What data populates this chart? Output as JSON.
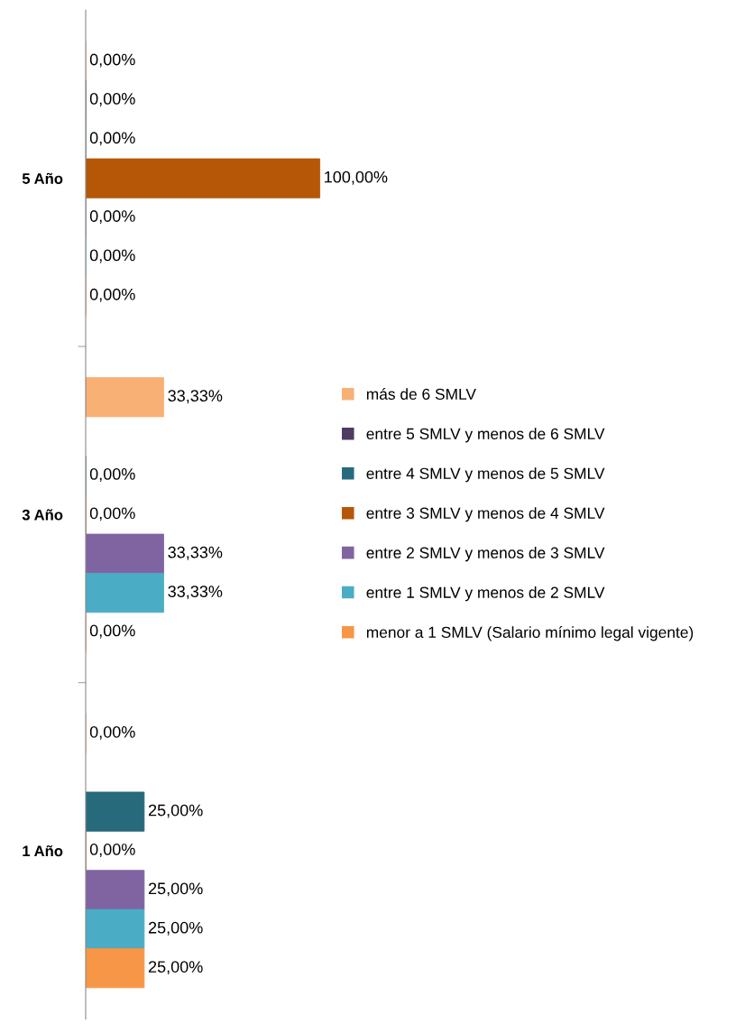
{
  "chart_data": {
    "type": "bar",
    "orientation": "horizontal",
    "categories": [
      "5 Año",
      "3 Año",
      "1 Año"
    ],
    "legend": "right",
    "grid": false,
    "series": [
      {
        "name": "más de 6 SMLV",
        "color": "#f9b074",
        "values": [
          0,
          33.33,
          0
        ],
        "value_labels": [
          "0,00%",
          "33,33%",
          "0,00%"
        ]
      },
      {
        "name": "entre 5 SMLV y menos de 6 SMLV",
        "color": "#4e3b62",
        "values": [
          0,
          null,
          null
        ],
        "value_labels": [
          "0,00%",
          null,
          null
        ]
      },
      {
        "name": "entre 4 SMLV y menos de 5 SMLV",
        "color": "#276a7c",
        "values": [
          0,
          0,
          25
        ],
        "value_labels": [
          "0,00%",
          "0,00%",
          "25,00%"
        ]
      },
      {
        "name": "entre 3 SMLV y menos de 4 SMLV",
        "color": "#b65708",
        "values": [
          100,
          0,
          0
        ],
        "value_labels": [
          "100,00%",
          "0,00%",
          "0,00%"
        ]
      },
      {
        "name": "entre 2 SMLV y menos de 3 SMLV",
        "color": "#8064a2",
        "values": [
          0,
          33.33,
          25
        ],
        "value_labels": [
          "0,00%",
          "33,33%",
          "25,00%"
        ]
      },
      {
        "name": "entre 1 SMLV y menos de 2 SMLV",
        "color": "#4bacc6",
        "values": [
          0,
          33.33,
          25
        ],
        "value_labels": [
          "0,00%",
          "33,33%",
          "25,00%"
        ]
      },
      {
        "name": "menor a 1 SMLV (Salario mínimo legal vigente)",
        "color": "#f79646",
        "values": [
          0,
          0,
          25
        ],
        "value_labels": [
          "0,00%",
          "0,00%",
          "25,00%"
        ]
      }
    ]
  }
}
